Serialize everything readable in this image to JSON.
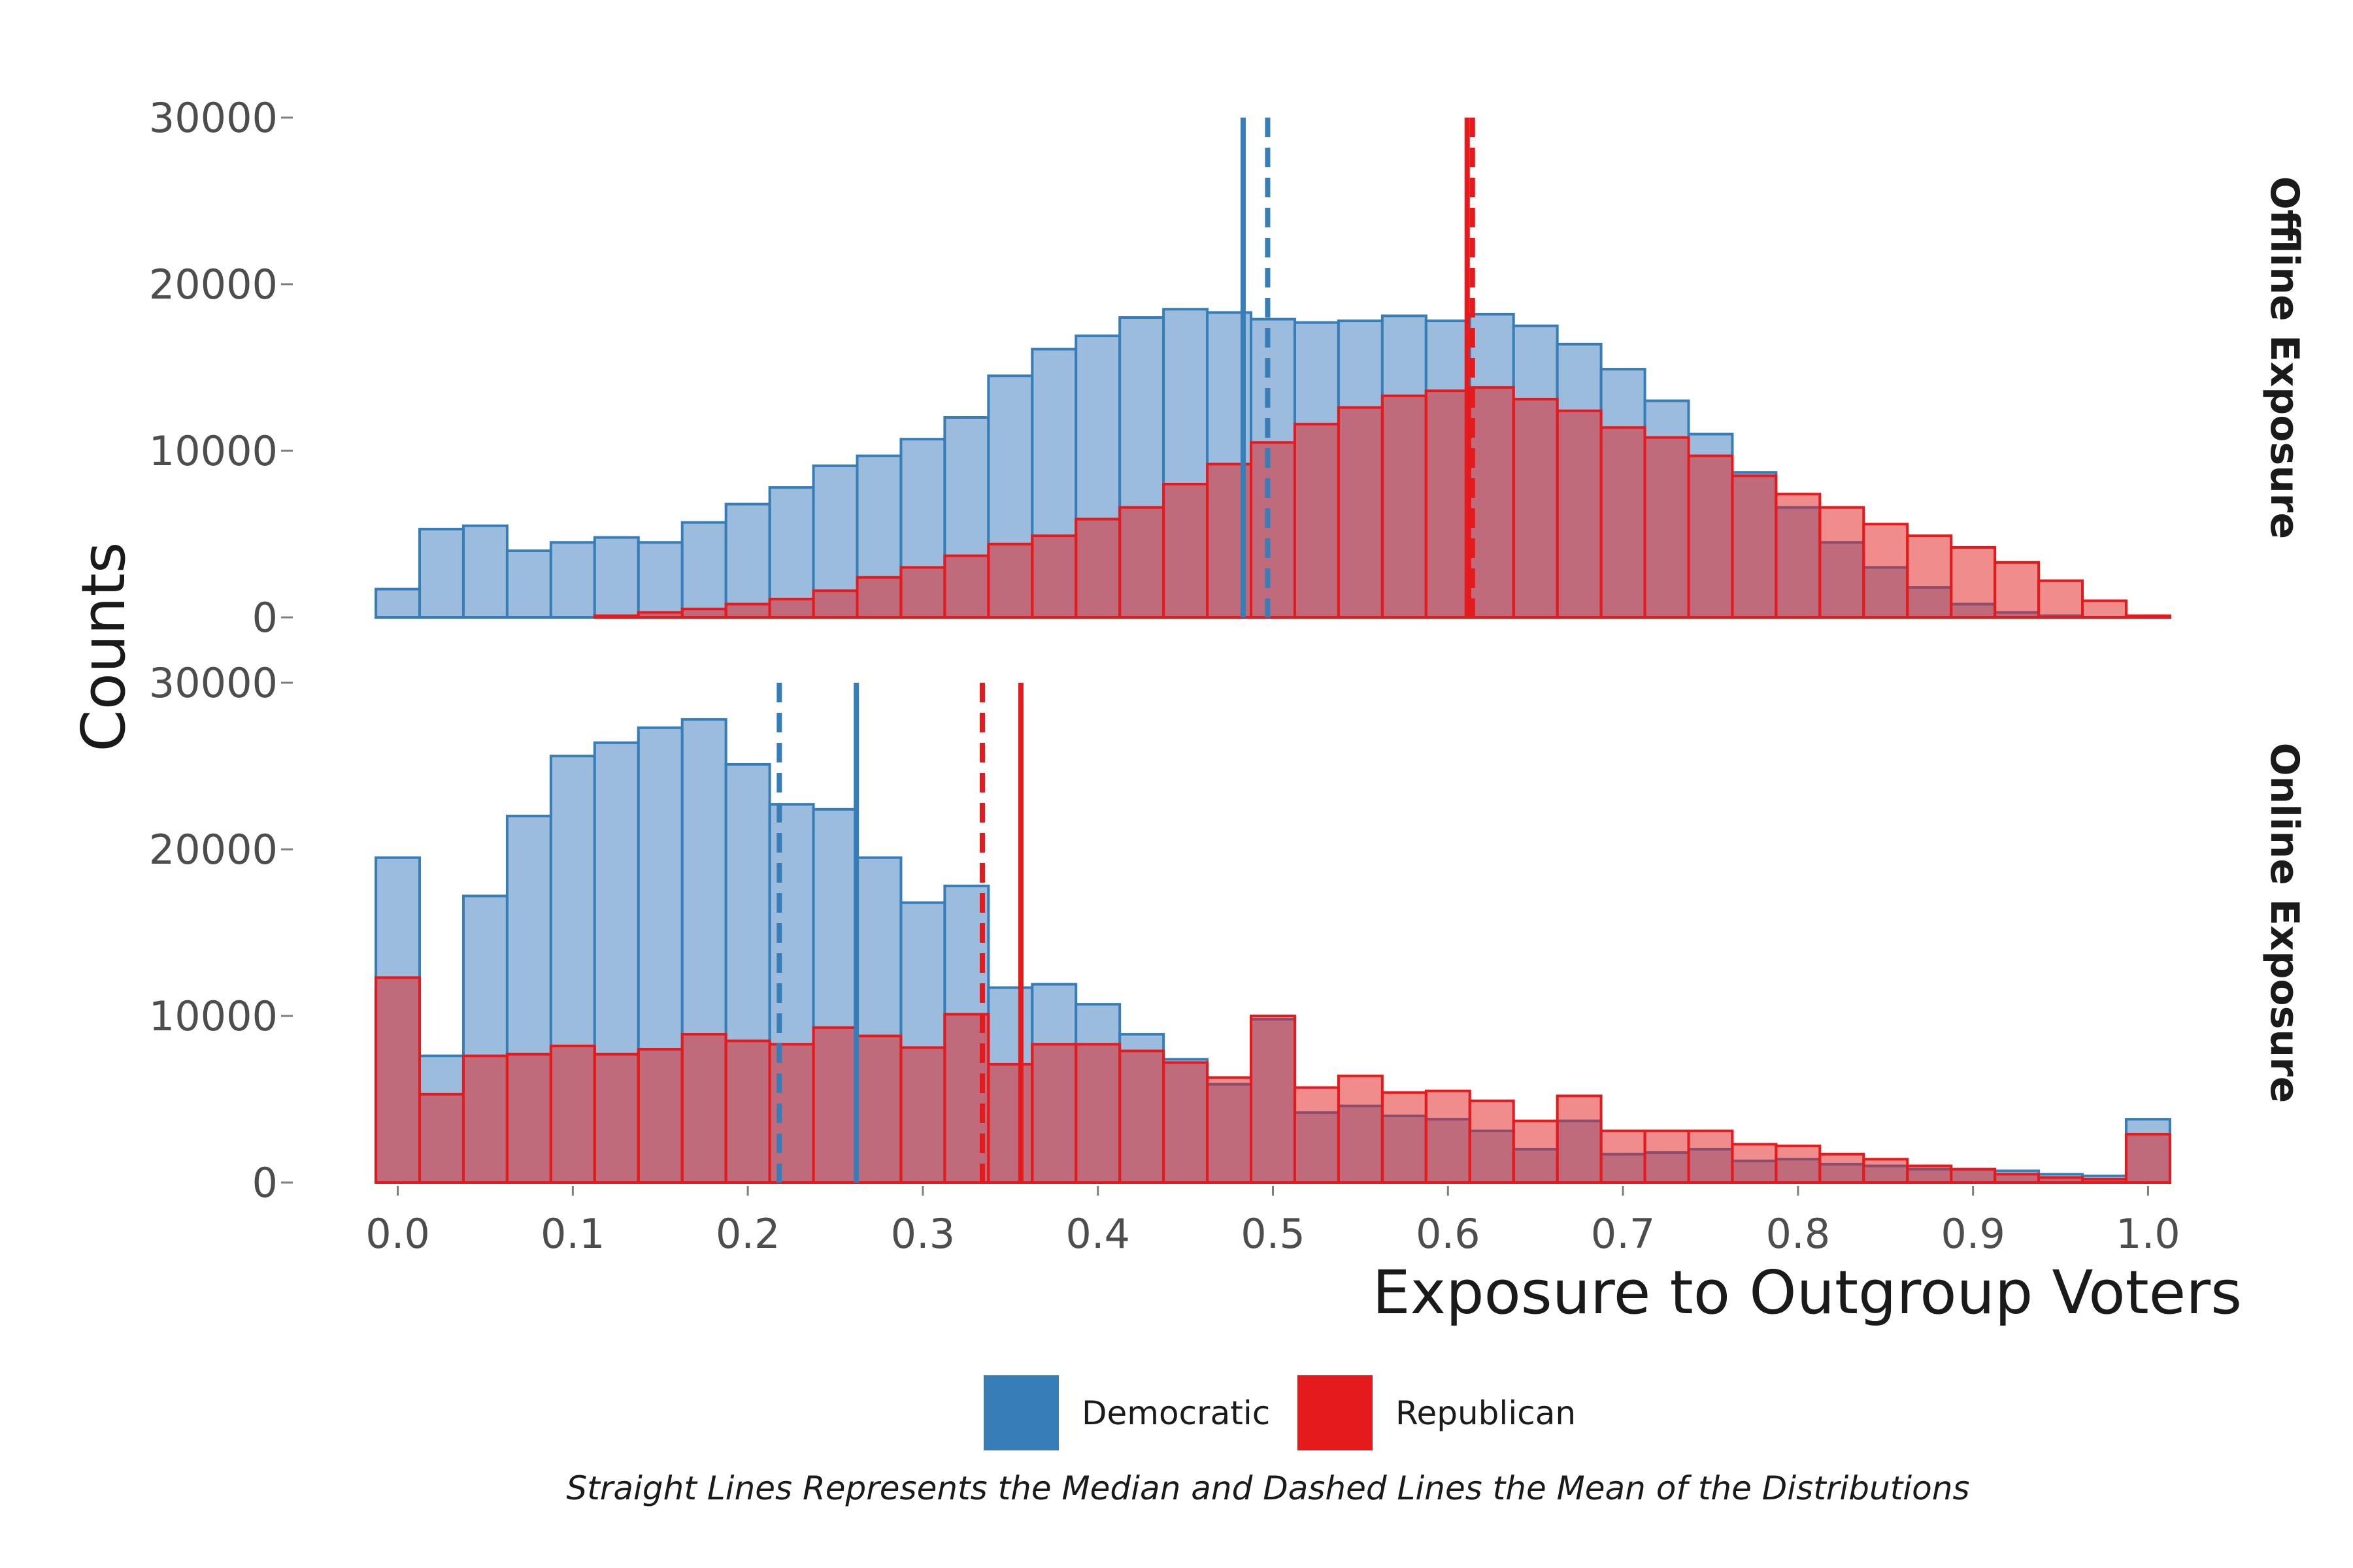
{
  "chart_data": {
    "type": "histogram",
    "xlabel": "Exposure to Outgroup Voters",
    "ylabel": "Counts",
    "caption": "Straight Lines Represents the Median and Dashed Lines the Mean of the Distributions",
    "xlim": [
      -0.02,
      1.02
    ],
    "ylim": [
      0,
      30000
    ],
    "x_ticks": [
      "0.0",
      "0.1",
      "0.2",
      "0.3",
      "0.4",
      "0.5",
      "0.6",
      "0.7",
      "0.8",
      "0.9",
      "1.0"
    ],
    "y_ticks": [
      "0",
      "10000",
      "20000",
      "30000"
    ],
    "bin_width": 0.025,
    "bin_start": -0.0125,
    "colors": {
      "Democratic": {
        "fill": "#9bbcdc",
        "stroke": "#377eb8"
      },
      "Republican": {
        "fill": "#e41a1c",
        "fillOpacity": 0.5,
        "stroke": "#e41a1c"
      }
    },
    "legend": {
      "position": "bottom",
      "items": [
        {
          "label": "Democratic",
          "color": "#377eb8"
        },
        {
          "label": "Republican",
          "color": "#e41a1c"
        }
      ]
    },
    "facets": [
      {
        "label": "Offline Exposure",
        "series": [
          {
            "name": "Democratic",
            "values": [
              1700,
              5300,
              5500,
              4000,
              4500,
              4800,
              4500,
              5700,
              6800,
              7800,
              9100,
              9700,
              10700,
              12000,
              14500,
              16100,
              16900,
              18000,
              18500,
              18300,
              17900,
              17700,
              17800,
              18100,
              17800,
              18200,
              17500,
              16400,
              14900,
              13000,
              11000,
              8700,
              6600,
              4500,
              3000,
              1800,
              800,
              300,
              100,
              0,
              0
            ]
          },
          {
            "name": "Republican",
            "values": [
              0,
              0,
              0,
              0,
              0,
              100,
              300,
              500,
              800,
              1100,
              1600,
              2400,
              3000,
              3700,
              4400,
              4900,
              5900,
              6600,
              8000,
              9200,
              10500,
              11600,
              12600,
              13300,
              13600,
              13800,
              13100,
              12400,
              11400,
              10800,
              9700,
              8500,
              7400,
              6600,
              5600,
              4900,
              4200,
              3300,
              2200,
              1000,
              100
            ]
          }
        ],
        "lines": [
          {
            "series": "Democratic",
            "stat": "median",
            "x": 0.483
          },
          {
            "series": "Democratic",
            "stat": "mean",
            "x": 0.497
          },
          {
            "series": "Republican",
            "stat": "median",
            "x": 0.611
          },
          {
            "series": "Republican",
            "stat": "mean",
            "x": 0.614
          }
        ]
      },
      {
        "label": "Online Exposure",
        "series": [
          {
            "name": "Democratic",
            "values": [
              19500,
              7600,
              17200,
              22000,
              25600,
              26400,
              27300,
              27800,
              25100,
              22700,
              22400,
              19500,
              16800,
              17800,
              11700,
              11900,
              10700,
              8900,
              7400,
              5900,
              9800,
              4200,
              4600,
              4000,
              3800,
              3100,
              2000,
              3700,
              1700,
              1800,
              2000,
              1300,
              1400,
              1100,
              1000,
              800,
              800,
              700,
              500,
              400,
              3800
            ]
          },
          {
            "name": "Republican",
            "values": [
              12300,
              5300,
              7600,
              7700,
              8200,
              7700,
              8000,
              8900,
              8500,
              8300,
              9300,
              8800,
              8100,
              10100,
              7100,
              8300,
              8300,
              7900,
              7200,
              6300,
              10000,
              5700,
              6400,
              5400,
              5500,
              4900,
              3700,
              5200,
              3100,
              3100,
              3100,
              2300,
              2200,
              1700,
              1400,
              1000,
              800,
              500,
              300,
              200,
              2900
            ]
          }
        ],
        "lines": [
          {
            "series": "Democratic",
            "stat": "median",
            "x": 0.262
          },
          {
            "series": "Democratic",
            "stat": "mean",
            "x": 0.218
          },
          {
            "series": "Republican",
            "stat": "median",
            "x": 0.356
          },
          {
            "series": "Republican",
            "stat": "mean",
            "x": 0.334
          }
        ]
      }
    ]
  }
}
